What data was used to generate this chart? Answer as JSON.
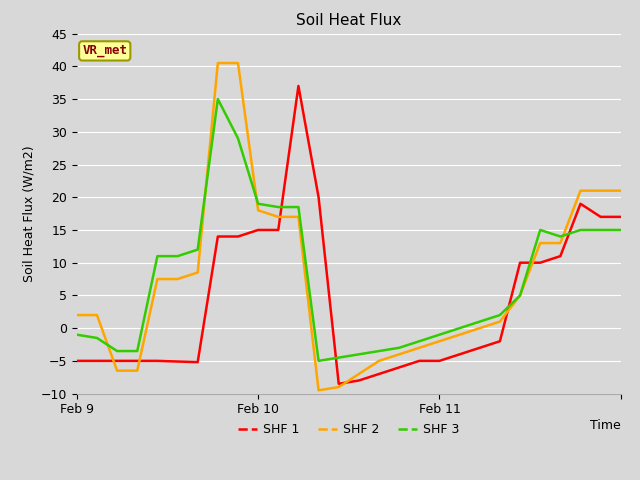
{
  "title": "Soil Heat Flux",
  "ylabel": "Soil Heat Flux (W/m2)",
  "xlabel": "Time",
  "ylim": [
    -10,
    45
  ],
  "background_color": "#d8d8d8",
  "plot_bg_color": "#d8d8d8",
  "legend_label": "VR_met",
  "series": {
    "SHF 1": {
      "color": "#ff0000",
      "x": [
        0,
        2,
        4,
        6,
        7,
        8,
        9,
        10,
        11,
        12,
        13,
        14,
        15,
        16,
        17,
        18,
        19,
        20,
        21,
        22,
        23,
        24,
        25,
        26,
        27
      ],
      "y": [
        -5,
        -5,
        -5,
        -5.2,
        14,
        14,
        15,
        15,
        37,
        20,
        -8.5,
        -8,
        -7,
        -6,
        -5,
        -5,
        -4,
        -3,
        -2,
        10,
        10,
        11,
        19,
        17,
        17
      ]
    },
    "SHF 2": {
      "color": "#ffa500",
      "x": [
        0,
        1,
        2,
        3,
        4,
        5,
        6,
        7,
        8,
        9,
        10,
        11,
        12,
        13,
        14,
        15,
        16,
        17,
        18,
        19,
        20,
        21,
        22,
        23,
        24,
        25,
        26,
        27
      ],
      "y": [
        2,
        2,
        -6.5,
        -6.5,
        7.5,
        7.5,
        8.5,
        40.5,
        40.5,
        18,
        17,
        17,
        -9.5,
        -9,
        -7,
        -5,
        -4,
        -3,
        -2,
        -1,
        0,
        1,
        5,
        13,
        13,
        21,
        21,
        21
      ]
    },
    "SHF 3": {
      "color": "#33cc00",
      "x": [
        0,
        1,
        2,
        3,
        4,
        5,
        6,
        7,
        8,
        9,
        10,
        11,
        12,
        13,
        14,
        15,
        16,
        17,
        18,
        19,
        20,
        21,
        22,
        23,
        24,
        25,
        26,
        27
      ],
      "y": [
        -1,
        -1.5,
        -3.5,
        -3.5,
        11,
        11,
        12,
        35,
        29,
        19,
        18.5,
        18.5,
        -5,
        -4.5,
        -4,
        -3.5,
        -3,
        -2,
        -1,
        0,
        1,
        2,
        5,
        15,
        14,
        15,
        15,
        15
      ]
    }
  },
  "xtick_positions": [
    0,
    9,
    18,
    27
  ],
  "xtick_labels": [
    "Feb 9",
    "Feb 10",
    "Feb 11",
    ""
  ],
  "grid_color": "#ffffff",
  "linewidth": 1.8,
  "fig_width": 6.4,
  "fig_height": 4.8,
  "dpi": 100
}
